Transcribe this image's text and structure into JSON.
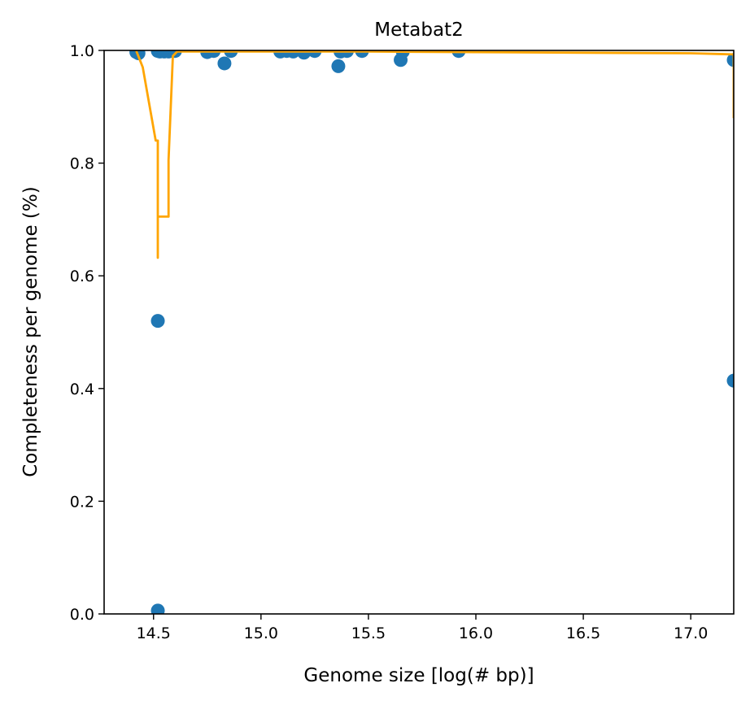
{
  "chart_data": {
    "type": "scatter",
    "title": "Metabat2",
    "xlabel": "Genome size [log(# bp)]",
    "ylabel": "Completeness per genome (%)",
    "xlim": [
      14.27,
      17.2
    ],
    "ylim": [
      0.0,
      1.0
    ],
    "x_ticks": [
      {
        "value": 14.5,
        "label": "14.5"
      },
      {
        "value": 15.0,
        "label": "15.0"
      },
      {
        "value": 15.5,
        "label": "15.5"
      },
      {
        "value": 16.0,
        "label": "16.0"
      },
      {
        "value": 16.5,
        "label": "16.5"
      },
      {
        "value": 17.0,
        "label": "17.0"
      }
    ],
    "y_ticks": [
      {
        "value": 0.0,
        "label": "0.0"
      },
      {
        "value": 0.2,
        "label": "0.2"
      },
      {
        "value": 0.4,
        "label": "0.4"
      },
      {
        "value": 0.6,
        "label": "0.6"
      },
      {
        "value": 0.8,
        "label": "0.8"
      },
      {
        "value": 1.0,
        "label": "1.0"
      }
    ],
    "grid": false,
    "legend": "none",
    "colors": {
      "points": "#1f77b4",
      "line": "#ffa500"
    },
    "series": [
      {
        "kind": "scatter",
        "points": [
          {
            "x": 14.42,
            "y": 0.997
          },
          {
            "x": 14.43,
            "y": 0.995
          },
          {
            "x": 14.52,
            "y": 0.999
          },
          {
            "x": 14.53,
            "y": 0.998
          },
          {
            "x": 14.52,
            "y": 0.52
          },
          {
            "x": 14.52,
            "y": 0.006
          },
          {
            "x": 14.55,
            "y": 0.998
          },
          {
            "x": 14.57,
            "y": 0.998
          },
          {
            "x": 14.6,
            "y": 0.999
          },
          {
            "x": 14.75,
            "y": 0.997
          },
          {
            "x": 14.78,
            "y": 0.999
          },
          {
            "x": 14.83,
            "y": 0.977
          },
          {
            "x": 14.86,
            "y": 0.999
          },
          {
            "x": 15.09,
            "y": 0.998
          },
          {
            "x": 15.12,
            "y": 0.999
          },
          {
            "x": 15.15,
            "y": 0.998
          },
          {
            "x": 15.2,
            "y": 0.996
          },
          {
            "x": 15.25,
            "y": 0.999
          },
          {
            "x": 15.36,
            "y": 0.972
          },
          {
            "x": 15.37,
            "y": 0.998
          },
          {
            "x": 15.4,
            "y": 0.999
          },
          {
            "x": 15.47,
            "y": 0.999
          },
          {
            "x": 15.65,
            "y": 0.983
          },
          {
            "x": 15.66,
            "y": 0.998
          },
          {
            "x": 15.92,
            "y": 0.999
          },
          {
            "x": 17.2,
            "y": 0.983
          },
          {
            "x": 17.2,
            "y": 0.414
          }
        ]
      },
      {
        "kind": "line",
        "points": [
          {
            "x": 14.42,
            "y": 0.999
          },
          {
            "x": 14.45,
            "y": 0.97
          },
          {
            "x": 14.51,
            "y": 0.84
          },
          {
            "x": 14.52,
            "y": 0.84
          },
          {
            "x": 14.52,
            "y": 0.632
          },
          {
            "x": 14.52,
            "y": 0.705
          },
          {
            "x": 14.57,
            "y": 0.705
          },
          {
            "x": 14.57,
            "y": 0.805
          },
          {
            "x": 14.59,
            "y": 0.99
          },
          {
            "x": 14.61,
            "y": 0.998
          },
          {
            "x": 15.0,
            "y": 0.998
          },
          {
            "x": 15.5,
            "y": 0.998
          },
          {
            "x": 16.0,
            "y": 0.997
          },
          {
            "x": 16.5,
            "y": 0.996
          },
          {
            "x": 17.0,
            "y": 0.995
          },
          {
            "x": 17.2,
            "y": 0.993
          },
          {
            "x": 17.2,
            "y": 0.88
          }
        ]
      }
    ]
  }
}
